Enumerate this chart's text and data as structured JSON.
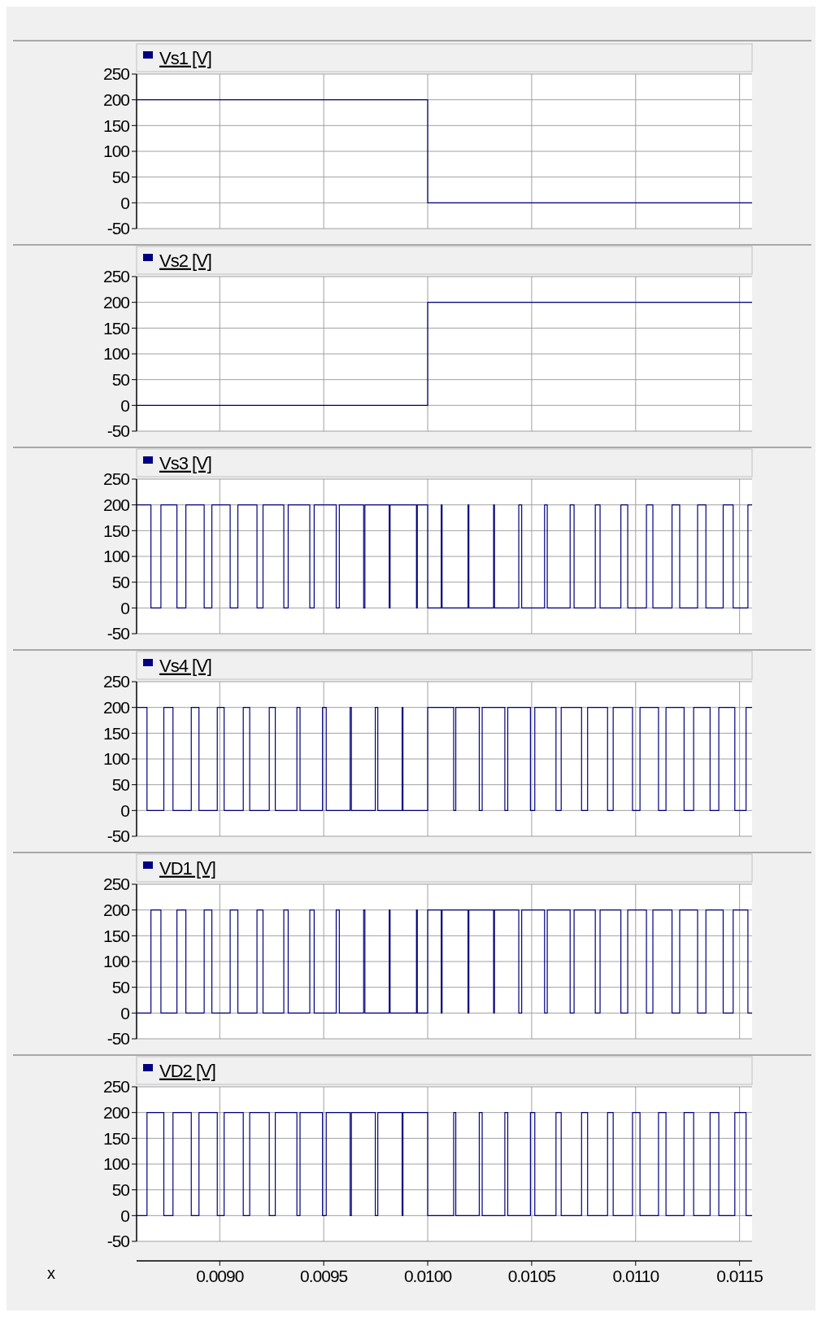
{
  "chart_data": [
    {
      "type": "step",
      "xlim": [
        0.0086,
        0.01156
      ],
      "xticks": [
        0.009,
        0.0095,
        0.01,
        0.0105,
        0.011,
        0.0115
      ],
      "ylim": [
        -50,
        250
      ],
      "yticks": [
        -50,
        0,
        50,
        100,
        150,
        200,
        250
      ],
      "grid": true,
      "legend": "top left",
      "tick_labels": "y",
      "series": [
        {
          "name": "Vs1 [V]",
          "color": "#000080",
          "x": [
            0.0086,
            0.01,
            0.01156
          ],
          "values": [
            200,
            0,
            0
          ]
        }
      ]
    },
    {
      "type": "step",
      "xlim": [
        0.0086,
        0.01156
      ],
      "xticks": [
        0.009,
        0.0095,
        0.01,
        0.0105,
        0.011,
        0.0115
      ],
      "ylim": [
        -50,
        250
      ],
      "yticks": [
        -50,
        0,
        50,
        100,
        150,
        200,
        250
      ],
      "grid": true,
      "legend": "top left",
      "tick_labels": "y",
      "series": [
        {
          "name": "Vs2 [V]",
          "color": "#000080",
          "x": [
            0.0086,
            0.01,
            0.01156
          ],
          "values": [
            0,
            200,
            200
          ]
        }
      ]
    },
    {
      "type": "step",
      "xlim": [
        0.0086,
        0.01156
      ],
      "xticks": [
        0.009,
        0.0095,
        0.01,
        0.0105,
        0.011,
        0.0115
      ],
      "ylim": [
        -50,
        250
      ],
      "yticks": [
        -50,
        0,
        50,
        100,
        150,
        200,
        250
      ],
      "grid": true,
      "legend": "top left",
      "tick_labels": "y",
      "series": [
        {
          "name": "Vs3 [V]",
          "color": "#000080",
          "x": [
            0.0086,
            0.008669,
            0.008717,
            0.008794,
            0.008837,
            0.008925,
            0.008962,
            0.00905,
            0.009087,
            0.009179,
            0.009208,
            0.009308,
            0.009329,
            0.009433,
            0.009454,
            0.00956,
            0.009575,
            0.009692,
            0.009698,
            0.009815,
            0.009819,
            0.009946,
            0.00995,
            0.01,
            0.010065,
            0.010069,
            0.010194,
            0.010198,
            0.010317,
            0.010321,
            0.010438,
            0.010452,
            0.010562,
            0.010575,
            0.010685,
            0.010704,
            0.010806,
            0.010829,
            0.010929,
            0.010962,
            0.011052,
            0.011083,
            0.011175,
            0.011212,
            0.011298,
            0.011338,
            0.011421,
            0.011469,
            0.01154,
            0.01156
          ],
          "values": [
            200,
            0,
            200,
            0,
            200,
            0,
            200,
            0,
            200,
            0,
            200,
            0,
            200,
            0,
            200,
            0,
            200,
            0,
            200,
            0,
            200,
            0,
            200,
            0,
            200,
            0,
            200,
            0,
            200,
            0,
            200,
            0,
            200,
            0,
            200,
            0,
            200,
            0,
            200,
            0,
            200,
            0,
            200,
            0,
            200,
            0,
            200,
            0,
            200,
            200
          ]
        }
      ]
    },
    {
      "type": "step",
      "xlim": [
        0.0086,
        0.01156
      ],
      "xticks": [
        0.009,
        0.0095,
        0.01,
        0.0105,
        0.011,
        0.0115
      ],
      "ylim": [
        -50,
        250
      ],
      "yticks": [
        -50,
        0,
        50,
        100,
        150,
        200,
        250
      ],
      "grid": true,
      "legend": "top left",
      "tick_labels": "y",
      "series": [
        {
          "name": "Vs4 [V]",
          "color": "#000080",
          "x": [
            0.0086,
            0.00865,
            0.008731,
            0.008775,
            0.008863,
            0.0089,
            0.008988,
            0.009021,
            0.009113,
            0.009144,
            0.009238,
            0.009267,
            0.009371,
            0.009386,
            0.009494,
            0.009512,
            0.009627,
            0.009633,
            0.009748,
            0.00976,
            0.009877,
            0.009881,
            0.01,
            0.010125,
            0.010135,
            0.010248,
            0.010262,
            0.010371,
            0.010385,
            0.010494,
            0.010515,
            0.010617,
            0.010642,
            0.01074,
            0.010769,
            0.010865,
            0.010892,
            0.010985,
            0.011021,
            0.01111,
            0.011146,
            0.011233,
            0.011279,
            0.011358,
            0.0114,
            0.011477,
            0.011531,
            0.01156
          ],
          "values": [
            200,
            0,
            200,
            0,
            200,
            0,
            200,
            0,
            200,
            0,
            200,
            0,
            200,
            0,
            200,
            0,
            200,
            0,
            200,
            0,
            200,
            0,
            200,
            0,
            200,
            0,
            200,
            0,
            200,
            0,
            200,
            0,
            200,
            0,
            200,
            0,
            200,
            0,
            200,
            0,
            200,
            0,
            200,
            0,
            200,
            0,
            200,
            200
          ]
        }
      ]
    },
    {
      "type": "step",
      "xlim": [
        0.0086,
        0.01156
      ],
      "xticks": [
        0.009,
        0.0095,
        0.01,
        0.0105,
        0.011,
        0.0115
      ],
      "ylim": [
        -50,
        250
      ],
      "yticks": [
        -50,
        0,
        50,
        100,
        150,
        200,
        250
      ],
      "grid": true,
      "legend": "top left",
      "tick_labels": "y",
      "series": [
        {
          "name": "VD1 [V]",
          "color": "#000080",
          "x": [
            0.0086,
            0.008669,
            0.008717,
            0.008794,
            0.008837,
            0.008925,
            0.008962,
            0.00905,
            0.009087,
            0.009179,
            0.009208,
            0.009308,
            0.009329,
            0.009433,
            0.009454,
            0.00956,
            0.009575,
            0.009692,
            0.009698,
            0.009815,
            0.009819,
            0.009946,
            0.00995,
            0.01,
            0.010065,
            0.010069,
            0.010194,
            0.010198,
            0.010317,
            0.010321,
            0.010438,
            0.010452,
            0.010562,
            0.010575,
            0.010685,
            0.010704,
            0.010806,
            0.010829,
            0.010929,
            0.010962,
            0.011052,
            0.011083,
            0.011175,
            0.011212,
            0.011298,
            0.011338,
            0.011421,
            0.011469,
            0.01154,
            0.01156
          ],
          "values": [
            0,
            200,
            0,
            200,
            0,
            200,
            0,
            200,
            0,
            200,
            0,
            200,
            0,
            200,
            0,
            200,
            0,
            200,
            0,
            200,
            0,
            200,
            0,
            200,
            0,
            200,
            0,
            200,
            0,
            200,
            0,
            200,
            0,
            200,
            0,
            200,
            0,
            200,
            0,
            200,
            0,
            200,
            0,
            200,
            0,
            200,
            0,
            200,
            0,
            0
          ]
        }
      ]
    },
    {
      "type": "step",
      "xlabel": "x",
      "xlim": [
        0.0086,
        0.01156
      ],
      "xticks": [
        {
          "value": 0.009,
          "label": "0.0090"
        },
        {
          "value": 0.0095,
          "label": "0.0095"
        },
        {
          "value": 0.01,
          "label": "0.0100"
        },
        {
          "value": 0.0105,
          "label": "0.0105"
        },
        {
          "value": 0.011,
          "label": "0.0110"
        },
        {
          "value": 0.0115,
          "label": "0.0115"
        }
      ],
      "ylim": [
        -50,
        250
      ],
      "yticks": [
        -50,
        0,
        50,
        100,
        150,
        200,
        250
      ],
      "grid": true,
      "legend": "top left",
      "series": [
        {
          "name": "VD2 [V]",
          "color": "#000080",
          "x": [
            0.0086,
            0.00865,
            0.008731,
            0.008775,
            0.008863,
            0.0089,
            0.008988,
            0.009021,
            0.009113,
            0.009144,
            0.009238,
            0.009267,
            0.009371,
            0.009386,
            0.009494,
            0.009512,
            0.009627,
            0.009633,
            0.009748,
            0.00976,
            0.009877,
            0.009881,
            0.01,
            0.010125,
            0.010135,
            0.010248,
            0.010262,
            0.010371,
            0.010385,
            0.010494,
            0.010515,
            0.010617,
            0.010642,
            0.01074,
            0.010769,
            0.010865,
            0.010892,
            0.010985,
            0.011021,
            0.01111,
            0.011146,
            0.011233,
            0.011279,
            0.011358,
            0.0114,
            0.011477,
            0.011531,
            0.01156
          ],
          "values": [
            0,
            200,
            0,
            200,
            0,
            200,
            0,
            200,
            0,
            200,
            0,
            200,
            0,
            200,
            0,
            200,
            0,
            200,
            0,
            200,
            0,
            200,
            0,
            200,
            0,
            200,
            0,
            200,
            0,
            200,
            0,
            200,
            0,
            200,
            0,
            200,
            0,
            200,
            0,
            200,
            0,
            200,
            0,
            200,
            0,
            200,
            0,
            0
          ]
        }
      ]
    }
  ]
}
